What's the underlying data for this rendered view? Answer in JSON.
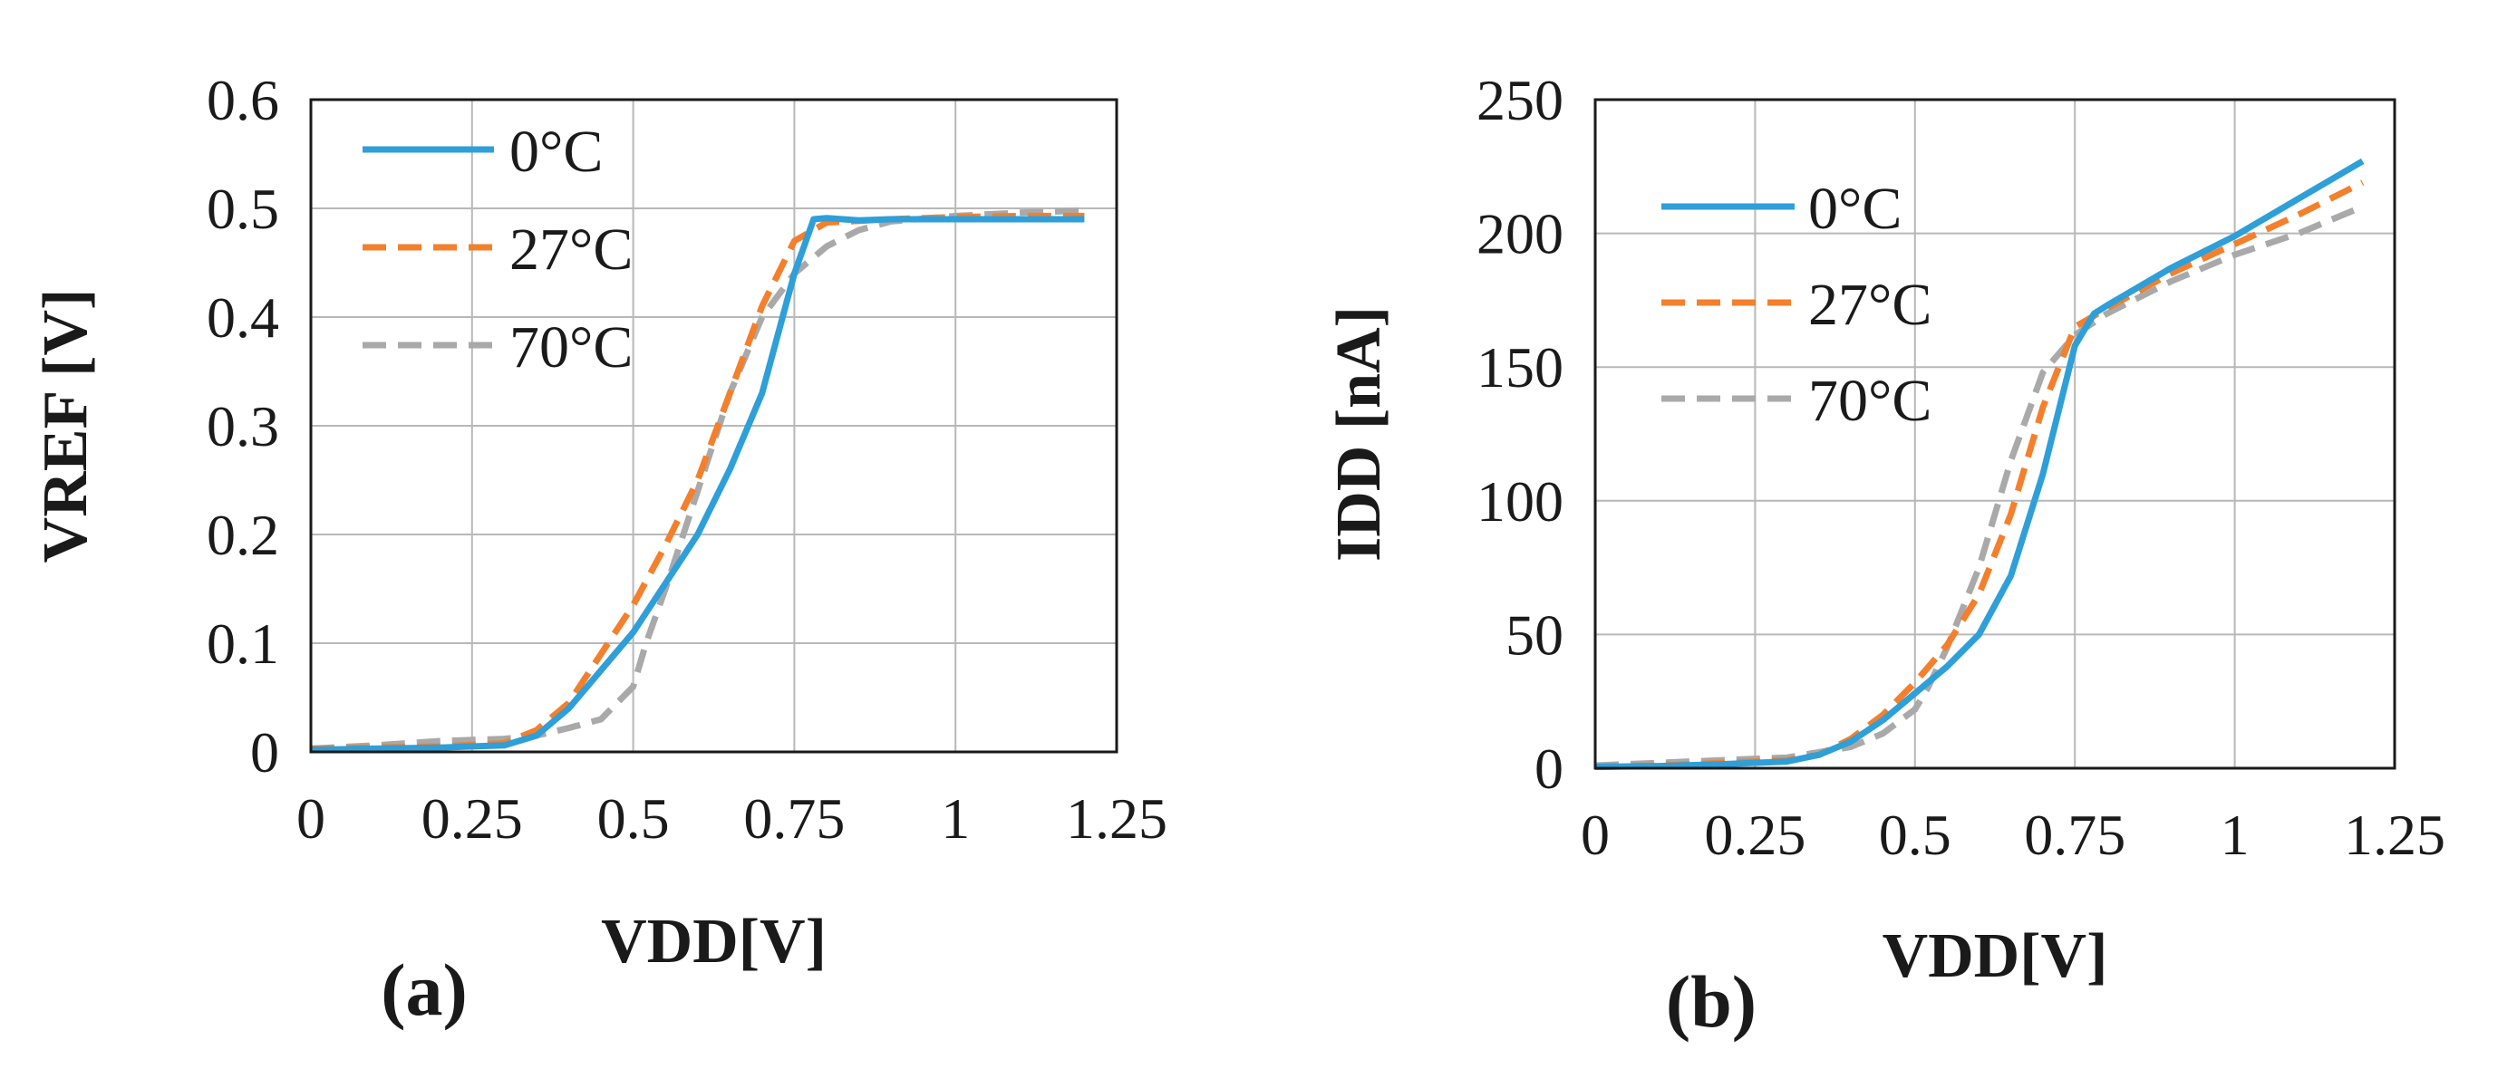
{
  "colors": {
    "c0": "#2e9fd8",
    "c27": "#f47f2c",
    "c70": "#a9a9a9",
    "grid": "#b8b8b8",
    "frame": "#1a1a1a"
  },
  "chart_data": [
    {
      "type": "line",
      "panel_label": "(a)",
      "title": "",
      "xlabel": "VDD[V]",
      "ylabel": "VREF [V]",
      "xlim": [
        0,
        1.25
      ],
      "ylim": [
        0,
        0.6
      ],
      "xticks": [
        0,
        0.25,
        0.5,
        0.75,
        1,
        1.25
      ],
      "xtick_labels": [
        "0",
        "0.25",
        "0.5",
        "0.75",
        "1",
        "1.25"
      ],
      "yticks": [
        0,
        0.1,
        0.2,
        0.3,
        0.4,
        0.5,
        0.6
      ],
      "ytick_labels": [
        "0",
        "0.1",
        "0.2",
        "0.3",
        "0.4",
        "0.5",
        "0.6"
      ],
      "grid": true,
      "legend_position": "top-left",
      "series": [
        {
          "name": "0°C",
          "style": "solid",
          "color_key": "c0",
          "x": [
            0,
            0.1,
            0.2,
            0.3,
            0.35,
            0.4,
            0.45,
            0.5,
            0.55,
            0.6,
            0.65,
            0.7,
            0.75,
            0.78,
            0.8,
            0.85,
            0.9,
            1.0,
            1.1,
            1.2
          ],
          "y": [
            0.002,
            0.003,
            0.004,
            0.006,
            0.015,
            0.04,
            0.075,
            0.11,
            0.155,
            0.2,
            0.26,
            0.33,
            0.44,
            0.49,
            0.491,
            0.489,
            0.49,
            0.49,
            0.49,
            0.49
          ]
        },
        {
          "name": "27°C",
          "style": "dashed",
          "color_key": "c27",
          "x": [
            0,
            0.1,
            0.2,
            0.3,
            0.35,
            0.4,
            0.45,
            0.5,
            0.55,
            0.6,
            0.65,
            0.7,
            0.75,
            0.8,
            0.9,
            1.0,
            1.1,
            1.2
          ],
          "y": [
            0.003,
            0.004,
            0.005,
            0.008,
            0.02,
            0.045,
            0.09,
            0.135,
            0.19,
            0.25,
            0.33,
            0.41,
            0.47,
            0.487,
            0.49,
            0.492,
            0.493,
            0.493
          ]
        },
        {
          "name": "70°C",
          "style": "dashed",
          "color_key": "c70",
          "x": [
            0,
            0.1,
            0.2,
            0.3,
            0.35,
            0.4,
            0.45,
            0.5,
            0.52,
            0.55,
            0.6,
            0.65,
            0.7,
            0.75,
            0.8,
            0.85,
            0.9,
            1.0,
            1.1,
            1.2
          ],
          "y": [
            0.003,
            0.006,
            0.01,
            0.012,
            0.015,
            0.022,
            0.03,
            0.06,
            0.1,
            0.15,
            0.24,
            0.33,
            0.4,
            0.44,
            0.465,
            0.48,
            0.488,
            0.493,
            0.496,
            0.498
          ]
        }
      ]
    },
    {
      "type": "line",
      "panel_label": "(b)",
      "title": "",
      "xlabel": "VDD[V]",
      "ylabel": "IDD [nA]",
      "xlim": [
        0,
        1.25
      ],
      "ylim": [
        0,
        250
      ],
      "xticks": [
        0,
        0.25,
        0.5,
        0.75,
        1,
        1.25
      ],
      "xtick_labels": [
        "0",
        "0.25",
        "0.5",
        "0.75",
        "1",
        "1.25"
      ],
      "yticks": [
        0,
        50,
        100,
        150,
        200,
        250
      ],
      "ytick_labels": [
        "0",
        "50",
        "100",
        "150",
        "200",
        "250"
      ],
      "grid": true,
      "legend_position": "top-left",
      "series": [
        {
          "name": "0°C",
          "style": "solid",
          "color_key": "c0",
          "x": [
            0,
            0.1,
            0.2,
            0.3,
            0.35,
            0.4,
            0.45,
            0.5,
            0.55,
            0.6,
            0.65,
            0.7,
            0.75,
            0.78,
            0.8,
            0.9,
            1.0,
            1.1,
            1.2
          ],
          "y": [
            0.5,
            0.8,
            1.5,
            2.5,
            5,
            10,
            18,
            28,
            38,
            50,
            72,
            110,
            158,
            170,
            173,
            187,
            199,
            213,
            227
          ]
        },
        {
          "name": "27°C",
          "style": "dashed",
          "color_key": "c27",
          "x": [
            0,
            0.1,
            0.2,
            0.3,
            0.35,
            0.4,
            0.45,
            0.5,
            0.55,
            0.6,
            0.65,
            0.7,
            0.75,
            0.8,
            0.9,
            1.0,
            1.1,
            1.2
          ],
          "y": [
            0.5,
            1,
            2,
            3,
            5,
            11,
            20,
            32,
            46,
            65,
            95,
            135,
            165,
            172,
            185,
            196,
            207,
            219
          ]
        },
        {
          "name": "70°C",
          "style": "dashed",
          "color_key": "c70",
          "x": [
            0,
            0.1,
            0.2,
            0.3,
            0.35,
            0.4,
            0.45,
            0.5,
            0.52,
            0.55,
            0.6,
            0.65,
            0.7,
            0.75,
            0.8,
            0.9,
            1.0,
            1.1,
            1.2
          ],
          "y": [
            1,
            2,
            3,
            4,
            6,
            8,
            13,
            22,
            30,
            45,
            75,
            115,
            148,
            162,
            170,
            182,
            192,
            200,
            210
          ]
        }
      ]
    }
  ]
}
